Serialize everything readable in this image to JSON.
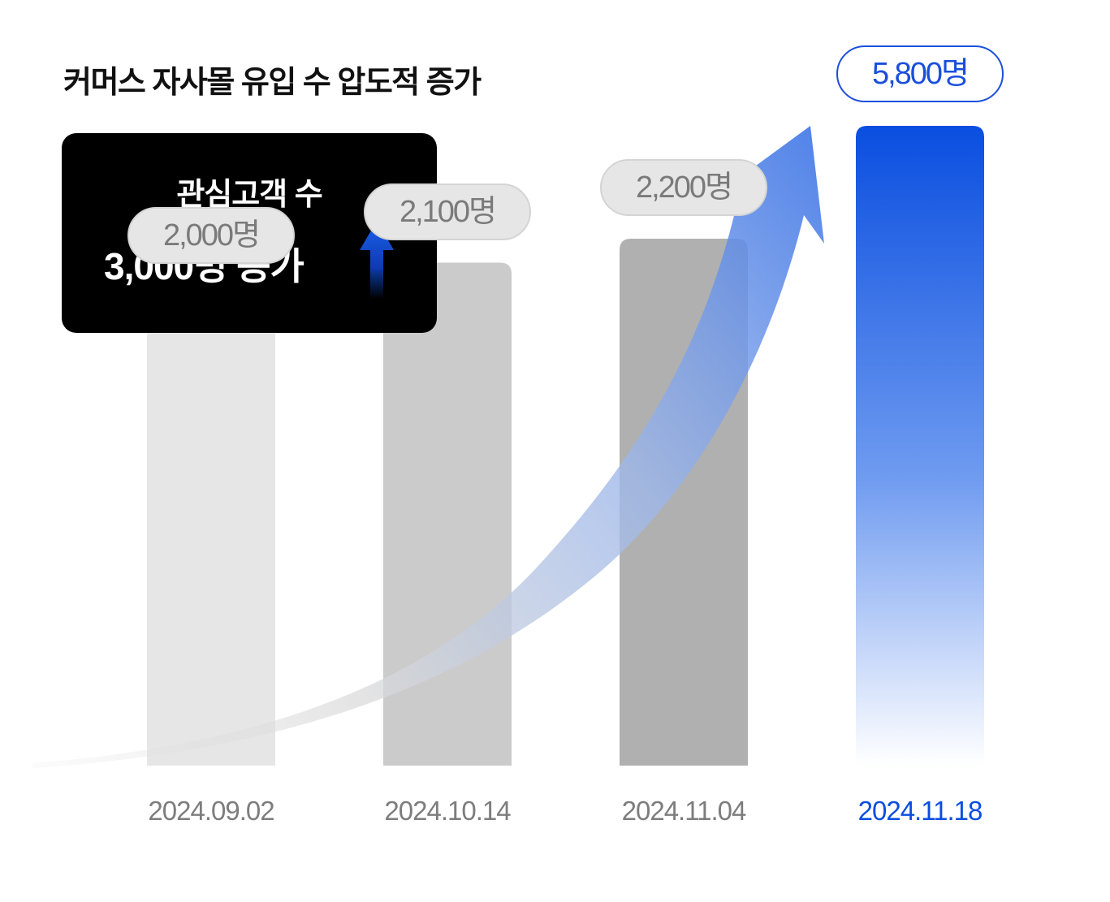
{
  "title": "커머스 자사몰 유입 수  압도적 증가",
  "callout": {
    "title": "관심고객 수",
    "value": "3,000명 증가"
  },
  "colors": {
    "highlight": "#0a4ee0",
    "bar_light": "#e6e6e6",
    "bar_mid": "#cbcbcb",
    "bar_dark": "#b0b0b0"
  },
  "icons": [
    "up-arrow-icon",
    "growth-curve-arrow-icon"
  ],
  "chart_data": {
    "type": "bar",
    "categories": [
      "2024.09.02",
      "2024.10.14",
      "2024.11.04",
      "2024.11.18"
    ],
    "values": [
      2000,
      2100,
      2200,
      5800
    ],
    "value_labels": [
      "2,000명",
      "2,100명",
      "2,200명",
      "5,800명"
    ],
    "highlighted_index": 3,
    "grid": true
  }
}
